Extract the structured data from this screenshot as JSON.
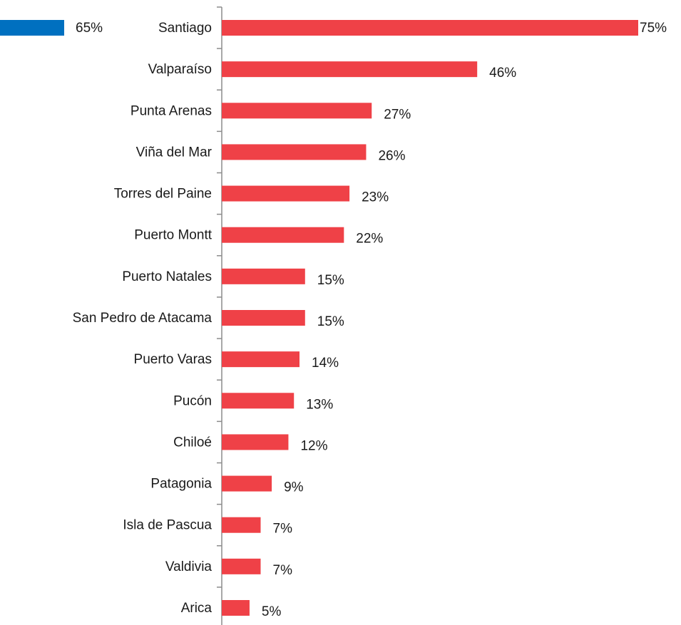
{
  "chart_data": {
    "type": "bar",
    "orientation": "horizontal",
    "categories": [
      "Santiago",
      "Valparaíso",
      "Punta Arenas",
      "Viña del Mar",
      "Torres del Paine",
      "Puerto Montt",
      "Puerto Natales",
      "San Pedro de Atacama",
      "Puerto Varas",
      "Pucón",
      "Chiloé",
      "Patagonia",
      "Isla de Pascua",
      "Valdivia",
      "Arica"
    ],
    "xlim": [
      0,
      75
    ],
    "series": [
      {
        "color": "#0070c0",
        "side": "left",
        "values": [
          65,
          null,
          null,
          null,
          null,
          null,
          null,
          null,
          null,
          null,
          null,
          null,
          null,
          null,
          null
        ],
        "value_labels": [
          "65%",
          null,
          null,
          null,
          null,
          null,
          null,
          null,
          null,
          null,
          null,
          null,
          null,
          null,
          null
        ]
      },
      {
        "color": "#ef4147",
        "side": "right",
        "values": [
          75,
          46,
          27,
          26,
          23,
          22,
          15,
          15,
          14,
          13,
          12,
          9,
          7,
          7,
          5
        ],
        "value_labels": [
          "75%",
          "46%",
          "27%",
          "26%",
          "23%",
          "22%",
          "15%",
          "15%",
          "14%",
          "13%",
          "12%",
          "9%",
          "7%",
          "7%",
          "5%"
        ]
      }
    ]
  }
}
